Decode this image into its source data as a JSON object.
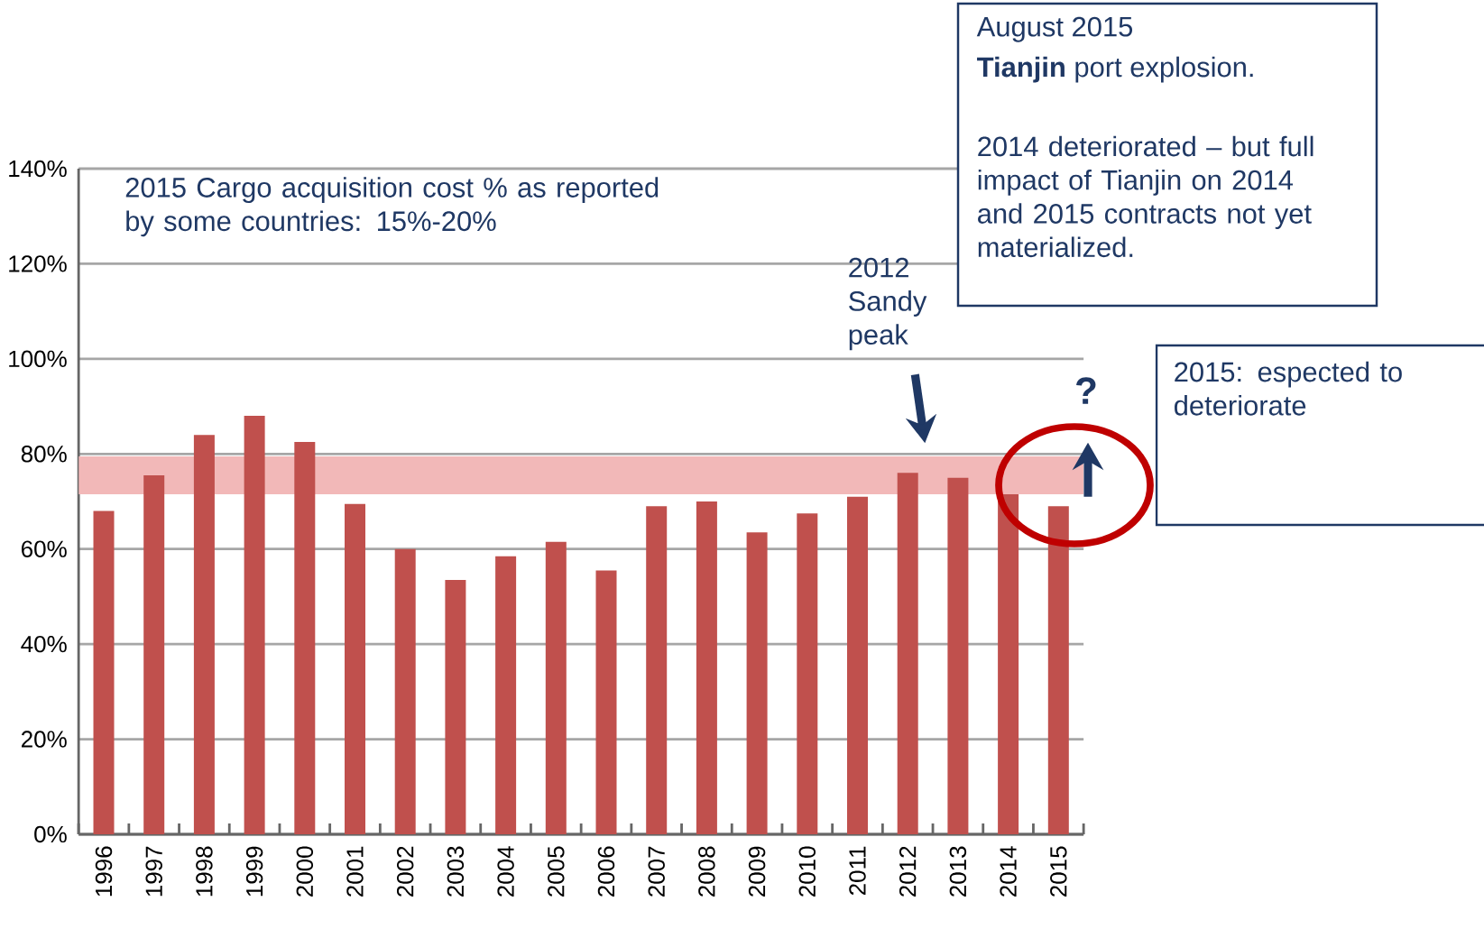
{
  "chart_data": {
    "type": "bar",
    "categories": [
      "1996",
      "1997",
      "1998",
      "1999",
      "2000",
      "2001",
      "2002",
      "2003",
      "2004",
      "2005",
      "2006",
      "2007",
      "2008",
      "2009",
      "2010",
      "2011",
      "2012",
      "2013",
      "2014",
      "2015"
    ],
    "values": [
      68,
      75.5,
      84,
      88,
      82.5,
      69.5,
      60,
      53.5,
      58.5,
      61.5,
      55.5,
      69,
      70,
      63.5,
      67.5,
      71,
      76,
      75,
      71.5,
      69
    ],
    "color": "#c0504d",
    "ylim": [
      0,
      140
    ],
    "yticks": [
      {
        "value": 0,
        "label": "0%"
      },
      {
        "value": 20,
        "label": "20%"
      },
      {
        "value": 40,
        "label": "40%"
      },
      {
        "value": 60,
        "label": "60%"
      },
      {
        "value": 80,
        "label": "80%"
      },
      {
        "value": 100,
        "label": "100%"
      },
      {
        "value": 120,
        "label": "120%"
      },
      {
        "value": 140,
        "label": "140%"
      }
    ],
    "grid": "y",
    "bands": [
      {
        "axis": "y",
        "from": 71.5,
        "to": 79.5,
        "color": "#f2b8b8"
      }
    ],
    "annotations": [
      "2015 Cargo acquisition cost % as reported by some countries: 15%-20%",
      "August 2015",
      "**Tianjin** port explosion.",
      "2014 deteriorated – but full impact of Tianjin on 2014 and 2015 contracts not yet materialized.",
      "2012 Sandy peak",
      "?",
      "2015: espected to deteriorate"
    ]
  }
}
